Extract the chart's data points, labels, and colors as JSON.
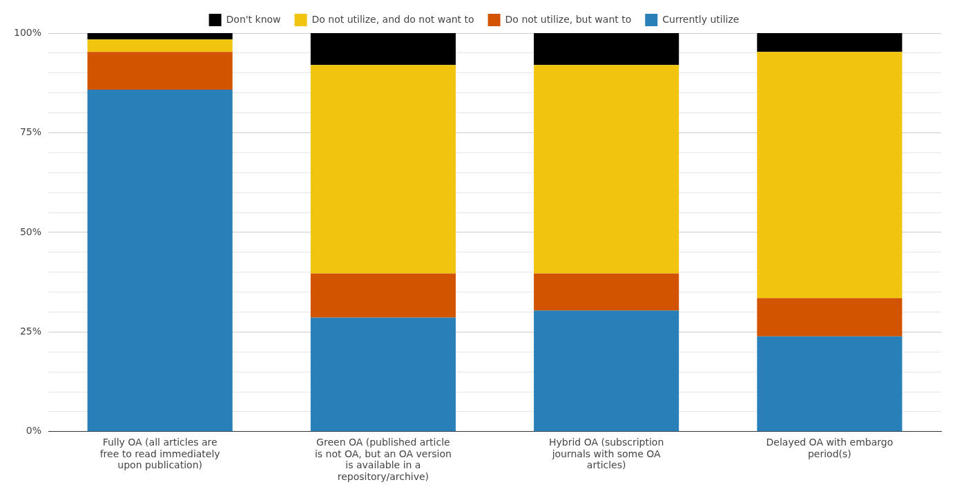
{
  "chart_data": {
    "type": "bar",
    "stacked": true,
    "categories": [
      "Fully OA (all articles are free to read immediately upon publication)",
      "Green OA (published article is not OA, but an OA version is available in a repository/archive)",
      "Hybrid OA (subscription journals with some OA articles)",
      "Delayed OA with embargo period(s)"
    ],
    "series": [
      {
        "name": "Currently utilize",
        "color": "#2980b9",
        "values": [
          85.8,
          28.6,
          30.4,
          23.9
        ]
      },
      {
        "name": "Do not utilize, but want to",
        "color": "#d35400",
        "values": [
          9.5,
          11.1,
          9.3,
          9.6
        ]
      },
      {
        "name": "Do not utilize, and do not want to",
        "color": "#f1c40f",
        "values": [
          3.1,
          52.3,
          52.3,
          61.8
        ]
      },
      {
        "name": "Don't know",
        "color": "#000000",
        "values": [
          1.6,
          8.0,
          8.0,
          4.7
        ]
      }
    ],
    "ylim": [
      0,
      100
    ],
    "yticks": [
      {
        "value": 0,
        "label": "0%"
      },
      {
        "value": 5,
        "label": null
      },
      {
        "value": 10,
        "label": null
      },
      {
        "value": 15,
        "label": null
      },
      {
        "value": 20,
        "label": null
      },
      {
        "value": 25,
        "label": "25%"
      },
      {
        "value": 30,
        "label": null
      },
      {
        "value": 35,
        "label": null
      },
      {
        "value": 40,
        "label": null
      },
      {
        "value": 45,
        "label": null
      },
      {
        "value": 50,
        "label": "50%"
      },
      {
        "value": 55,
        "label": null
      },
      {
        "value": 60,
        "label": null
      },
      {
        "value": 65,
        "label": null
      },
      {
        "value": 70,
        "label": null
      },
      {
        "value": 75,
        "label": "75%"
      },
      {
        "value": 80,
        "label": null
      },
      {
        "value": 85,
        "label": null
      },
      {
        "value": 90,
        "label": null
      },
      {
        "value": 95,
        "label": null
      },
      {
        "value": 100,
        "label": "100%"
      }
    ],
    "grid": "y",
    "legend": "top"
  }
}
